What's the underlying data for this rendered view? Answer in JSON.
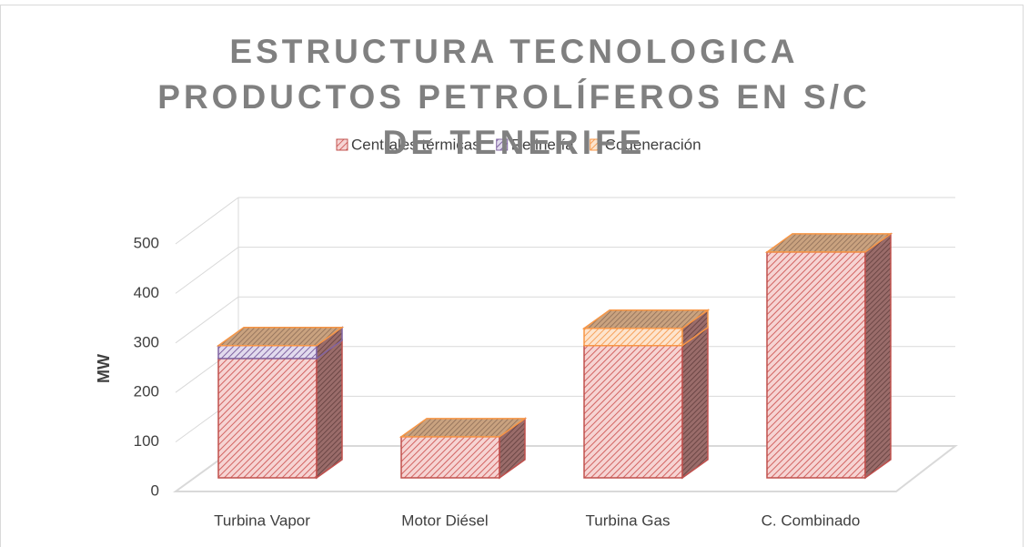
{
  "chart_data": {
    "type": "bar3d_stacked",
    "title": "ESTRUCTURA TECNOLOGICA PRODUCTOS PETROLÍFEROS EN S/C DE TENERIFE",
    "y_label": "MW",
    "categories": [
      "Turbina Vapor",
      "Motor Diésel",
      "Turbina Gas",
      "C. Combinado"
    ],
    "series": [
      {
        "name": "Centrales térmicas",
        "color": "#c0504d",
        "values": [
          241,
          83,
          267,
          456
        ]
      },
      {
        "name": "Refinería",
        "color": "#8064a2",
        "values": [
          26,
          0,
          0,
          0
        ]
      },
      {
        "name": "Cogeneración",
        "color": "#f79646",
        "values": [
          0,
          0,
          35,
          0
        ]
      }
    ],
    "ylim": [
      0,
      500
    ],
    "yticks": [
      0,
      100,
      200,
      300,
      400,
      500
    ],
    "grid": true,
    "legend": "top"
  }
}
